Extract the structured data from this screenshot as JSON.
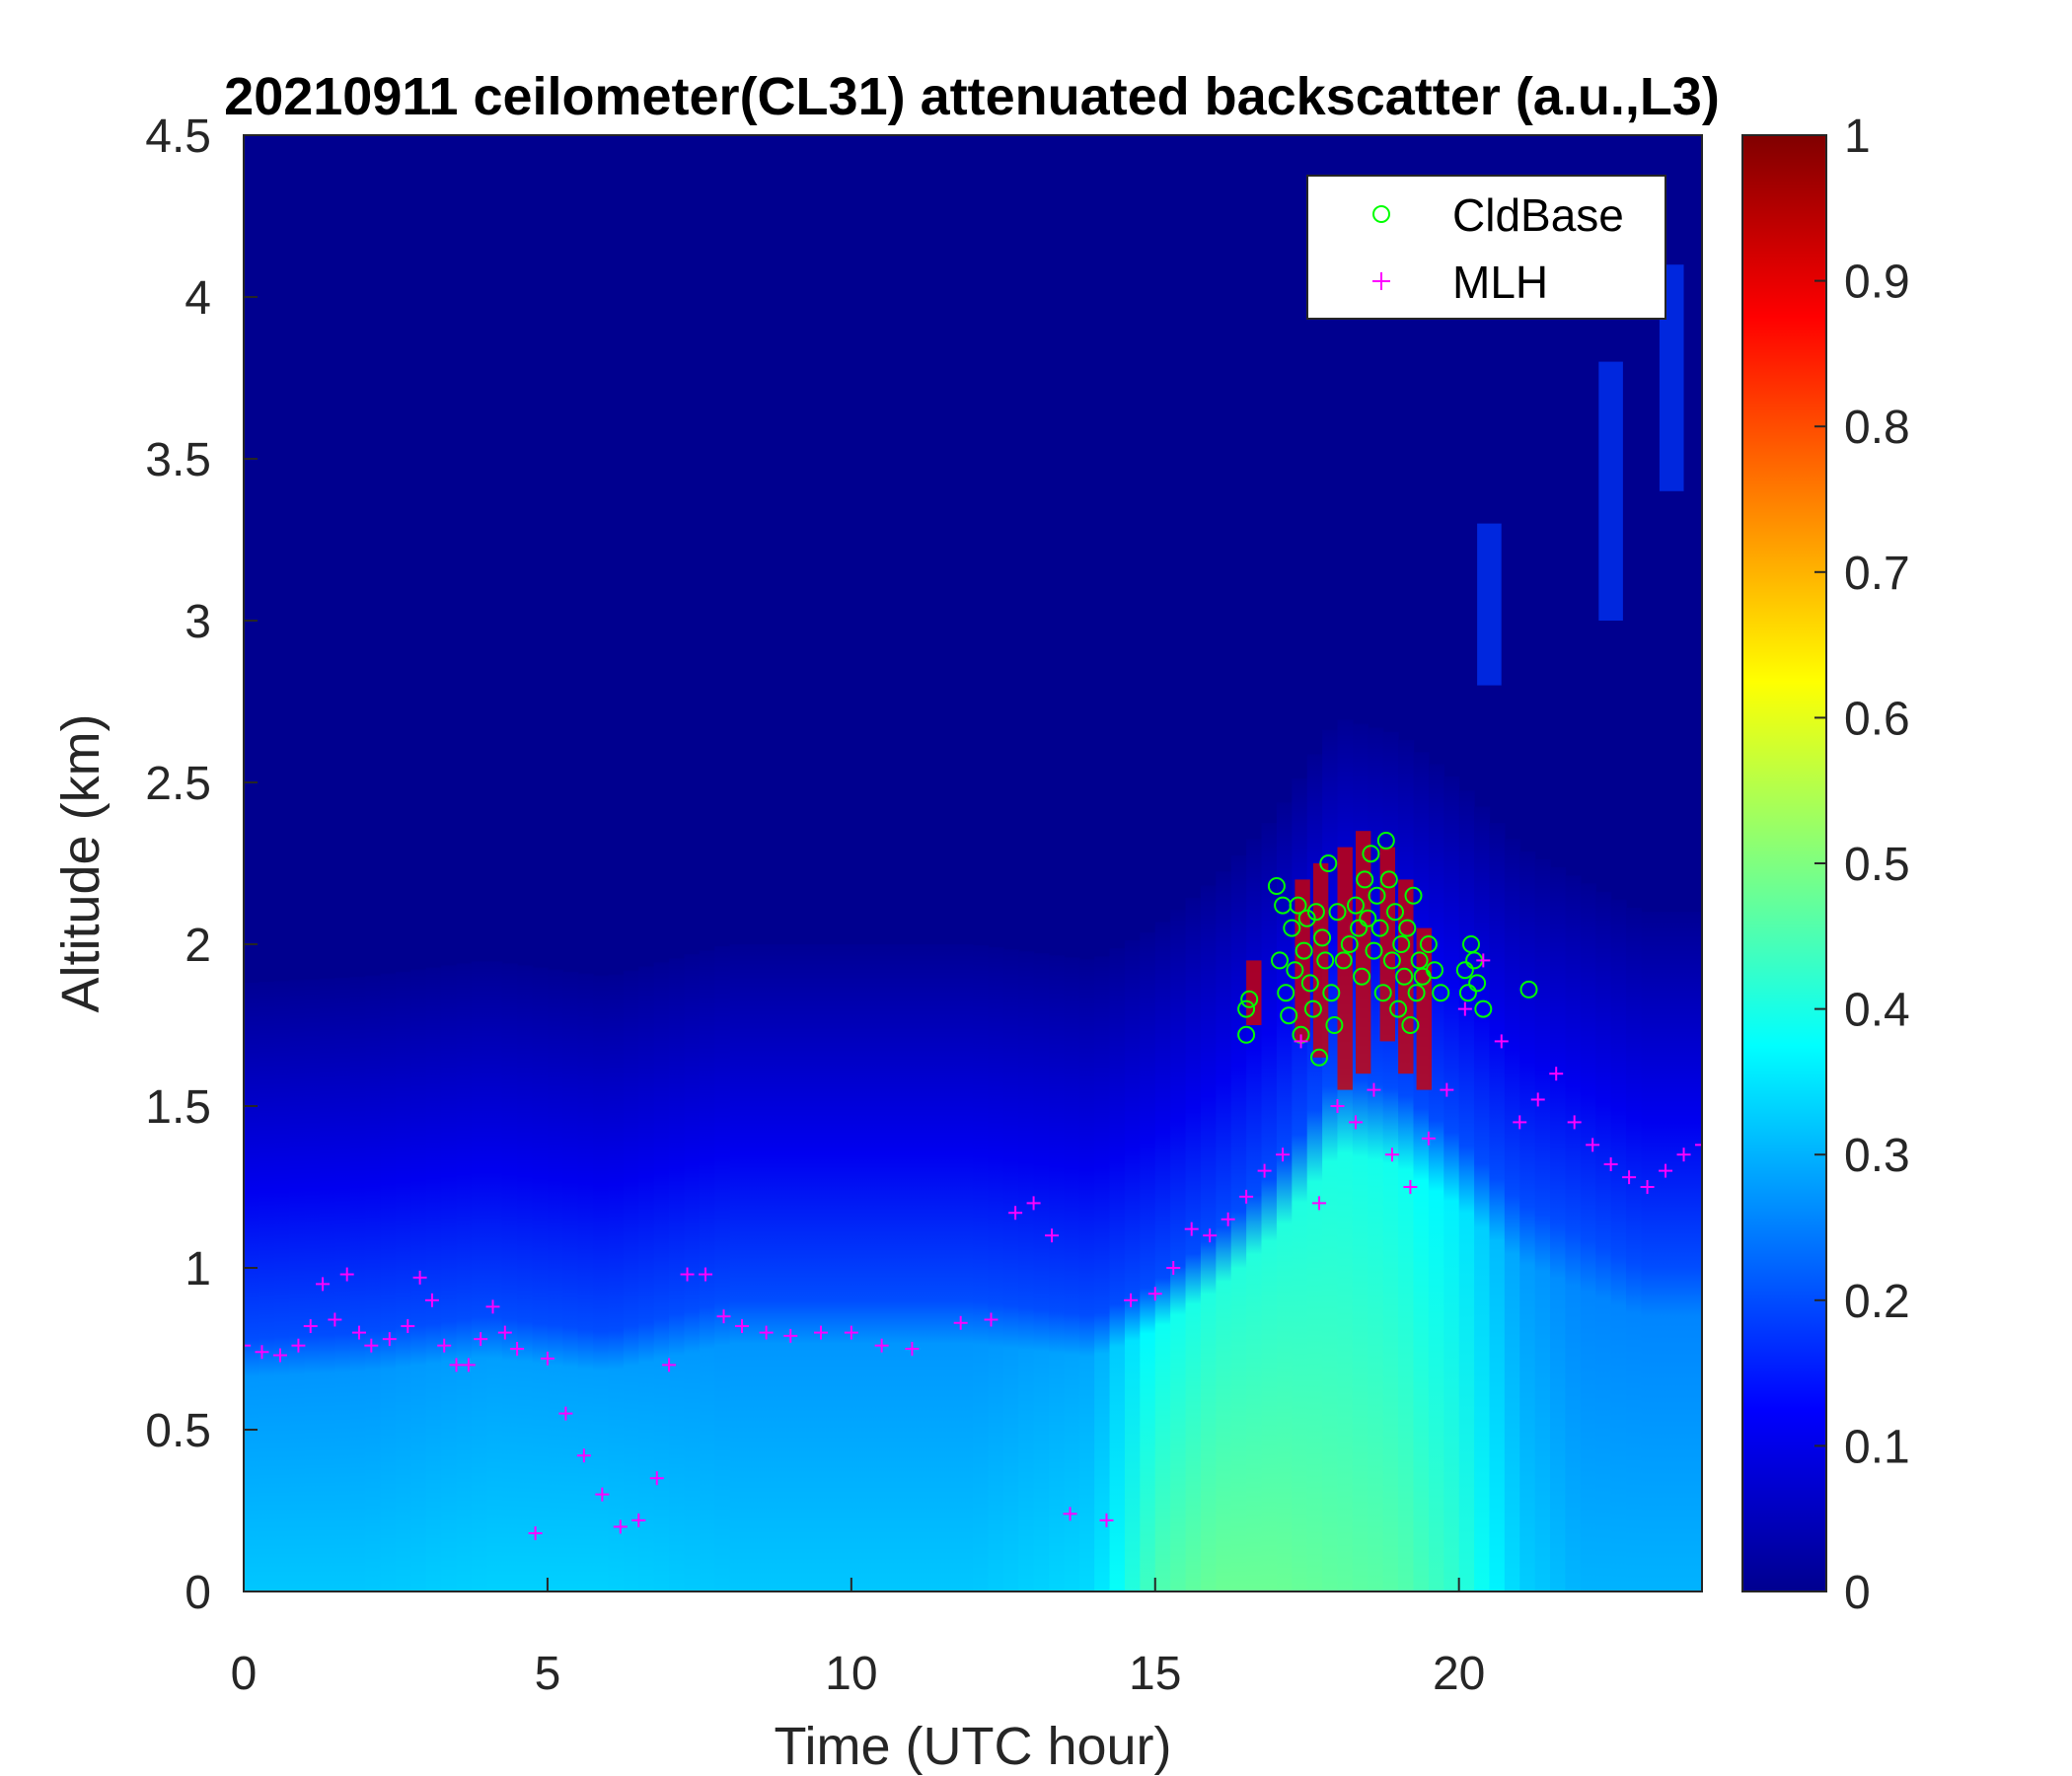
{
  "chart_data": {
    "type": "heatmap",
    "title": "20210911 ceilometer(CL31) attenuated backscatter (a.u.,L3)",
    "xlabel": "Time (UTC hour)",
    "ylabel": "Altitude (km)",
    "xlim": [
      0,
      24
    ],
    "ylim": [
      0,
      4.5
    ],
    "xticks": [
      0,
      5,
      10,
      15,
      20
    ],
    "yticks": [
      0,
      0.5,
      1,
      1.5,
      2,
      2.5,
      3,
      3.5,
      4,
      4.5
    ],
    "colorbar": {
      "colormap": "jet",
      "range": [
        0,
        1
      ],
      "ticks": [
        0,
        0.1,
        0.2,
        0.3,
        0.4,
        0.5,
        0.6,
        0.7,
        0.8,
        0.9,
        1
      ]
    },
    "legend": {
      "position": "top-right",
      "entries": [
        {
          "label": "CldBase",
          "marker": "circle",
          "color": "#00ff00"
        },
        {
          "label": "MLH",
          "marker": "plus",
          "color": "#ff00ff"
        }
      ]
    },
    "backscatter_layer_tops": {
      "description_keys": [
        "hour",
        "top_km",
        "surface_value"
      ],
      "points": [
        [
          0,
          0.78,
          0.32
        ],
        [
          2,
          0.8,
          0.32
        ],
        [
          4,
          0.85,
          0.33
        ],
        [
          6,
          0.8,
          0.33
        ],
        [
          8,
          0.9,
          0.32
        ],
        [
          10,
          0.9,
          0.32
        ],
        [
          12,
          0.9,
          0.32
        ],
        [
          14,
          0.85,
          0.34
        ],
        [
          15,
          0.95,
          0.45
        ],
        [
          16,
          1.1,
          0.48
        ],
        [
          17,
          1.3,
          0.48
        ],
        [
          18,
          1.6,
          0.47
        ],
        [
          19,
          1.55,
          0.46
        ],
        [
          20,
          1.4,
          0.42
        ],
        [
          21,
          1.2,
          0.33
        ],
        [
          22,
          1.1,
          0.3
        ],
        [
          23,
          1.0,
          0.3
        ],
        [
          24,
          1.0,
          0.3
        ]
      ]
    },
    "cloud_base": {
      "name": "CldBase",
      "x": [
        16.5,
        16.5,
        16.55,
        17.0,
        17.05,
        17.1,
        17.15,
        17.2,
        17.25,
        17.3,
        17.35,
        17.4,
        17.45,
        17.5,
        17.55,
        17.6,
        17.65,
        17.7,
        17.75,
        17.8,
        17.85,
        17.9,
        17.95,
        18.0,
        18.1,
        18.2,
        18.3,
        18.35,
        18.4,
        18.45,
        18.5,
        18.55,
        18.6,
        18.65,
        18.7,
        18.75,
        18.8,
        18.85,
        18.9,
        18.95,
        19.0,
        19.05,
        19.1,
        19.15,
        19.2,
        19.25,
        19.3,
        19.35,
        19.4,
        19.5,
        19.6,
        19.7,
        20.1,
        20.15,
        20.2,
        20.25,
        20.3,
        20.4,
        21.15
      ],
      "y": [
        1.8,
        1.72,
        1.83,
        2.18,
        1.95,
        2.12,
        1.85,
        1.78,
        2.05,
        1.92,
        2.12,
        1.72,
        1.98,
        2.08,
        1.88,
        1.8,
        2.1,
        1.65,
        2.02,
        1.95,
        2.25,
        1.85,
        1.75,
        2.1,
        1.95,
        2.0,
        2.12,
        2.05,
        1.9,
        2.2,
        2.08,
        2.28,
        1.98,
        2.15,
        2.05,
        1.85,
        2.32,
        2.2,
        1.95,
        2.1,
        1.8,
        2.0,
        1.9,
        2.05,
        1.75,
        2.15,
        1.85,
        1.95,
        1.9,
        2.0,
        1.92,
        1.85,
        1.92,
        1.85,
        2.0,
        1.95,
        1.88,
        1.8,
        1.86
      ]
    },
    "mlh": {
      "name": "MLH",
      "x": [
        0,
        0.3,
        0.6,
        0.9,
        1.1,
        1.3,
        1.5,
        1.7,
        1.9,
        2.1,
        2.4,
        2.7,
        2.9,
        3.1,
        3.3,
        3.5,
        3.7,
        3.9,
        4.1,
        4.3,
        4.5,
        4.8,
        5.0,
        5.3,
        5.6,
        5.9,
        6.2,
        6.5,
        6.8,
        7.0,
        7.3,
        7.6,
        7.9,
        8.2,
        8.6,
        9.0,
        9.5,
        10.0,
        10.5,
        11.0,
        11.8,
        12.3,
        12.7,
        13.0,
        13.3,
        13.6,
        14.2,
        14.6,
        15.0,
        15.3,
        15.6,
        15.9,
        16.2,
        16.5,
        16.8,
        17.1,
        17.4,
        17.7,
        18.0,
        18.3,
        18.6,
        18.9,
        19.2,
        19.5,
        19.8,
        20.1,
        20.4,
        20.7,
        21.0,
        21.3,
        21.6,
        21.9,
        22.2,
        22.5,
        22.8,
        23.1,
        23.4,
        23.7,
        24.0
      ],
      "y": [
        0.76,
        0.74,
        0.73,
        0.76,
        0.82,
        0.95,
        0.84,
        0.98,
        0.8,
        0.76,
        0.78,
        0.82,
        0.97,
        0.9,
        0.76,
        0.7,
        0.7,
        0.78,
        0.88,
        0.8,
        0.75,
        0.18,
        0.72,
        0.55,
        0.42,
        0.3,
        0.2,
        0.22,
        0.35,
        0.7,
        0.98,
        0.98,
        0.85,
        0.82,
        0.8,
        0.79,
        0.8,
        0.8,
        0.76,
        0.75,
        0.83,
        0.84,
        1.17,
        1.2,
        1.1,
        0.24,
        0.22,
        0.9,
        0.92,
        1.0,
        1.12,
        1.1,
        1.15,
        1.22,
        1.3,
        1.35,
        1.7,
        1.2,
        1.5,
        1.45,
        1.55,
        1.35,
        1.25,
        1.4,
        1.55,
        1.8,
        1.95,
        1.7,
        1.45,
        1.52,
        1.6,
        1.45,
        1.38,
        1.32,
        1.28,
        1.25,
        1.3,
        1.35,
        1.38
      ]
    }
  }
}
